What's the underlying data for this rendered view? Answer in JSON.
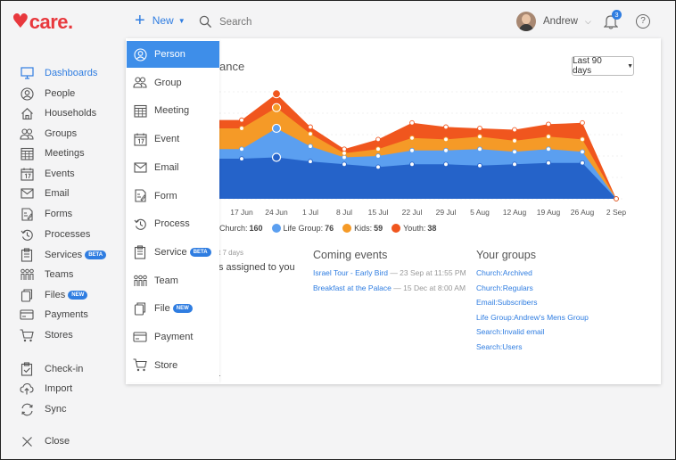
{
  "header": {
    "logo_text": "care.",
    "new_label": "New",
    "search_label": "Search",
    "user_name": "Andrew",
    "notification_count": "3",
    "help_label": "?"
  },
  "sidebar": {
    "items": [
      {
        "label": "Dashboards",
        "icon": "monitor-icon"
      },
      {
        "label": "People",
        "icon": "person-icon"
      },
      {
        "label": "Households",
        "icon": "house-icon"
      },
      {
        "label": "Groups",
        "icon": "group-icon"
      },
      {
        "label": "Meetings",
        "icon": "calendar-grid-icon"
      },
      {
        "label": "Events",
        "icon": "calendar-icon"
      },
      {
        "label": "Email",
        "icon": "envelope-icon"
      },
      {
        "label": "Forms",
        "icon": "form-icon"
      },
      {
        "label": "Processes",
        "icon": "process-icon"
      },
      {
        "label": "Services",
        "icon": "clipboard-icon",
        "badge": "BETA"
      },
      {
        "label": "Teams",
        "icon": "team-icon"
      },
      {
        "label": "Files",
        "icon": "file-icon",
        "badge": "NEW"
      },
      {
        "label": "Payments",
        "icon": "card-icon"
      },
      {
        "label": "Stores",
        "icon": "cart-icon"
      },
      {
        "label": "Check-in",
        "icon": "checkin-icon"
      },
      {
        "label": "Import",
        "icon": "upload-icon"
      },
      {
        "label": "Sync",
        "icon": "sync-icon"
      },
      {
        "label": "Close",
        "icon": "close-icon"
      }
    ]
  },
  "new_menu": {
    "items": [
      {
        "label": "Person",
        "icon": "person-icon"
      },
      {
        "label": "Group",
        "icon": "group-icon"
      },
      {
        "label": "Meeting",
        "icon": "calendar-grid-icon"
      },
      {
        "label": "Event",
        "icon": "calendar-icon"
      },
      {
        "label": "Email",
        "icon": "envelope-icon"
      },
      {
        "label": "Form",
        "icon": "form-icon"
      },
      {
        "label": "Process",
        "icon": "process-icon"
      },
      {
        "label": "Service",
        "icon": "clipboard-icon",
        "badge": "BETA"
      },
      {
        "label": "Team",
        "icon": "team-icon"
      },
      {
        "label": "File",
        "icon": "file-icon",
        "badge": "NEW"
      },
      {
        "label": "Payment",
        "icon": "card-icon"
      },
      {
        "label": "Store",
        "icon": "cart-icon"
      }
    ]
  },
  "dashboard": {
    "title_partial": "ance",
    "range_selected": "Last 90 days",
    "assigned_small": "t 7 days",
    "assigned_text": "s assigned to you",
    "coming_events_title": "Coming events",
    "events": [
      {
        "name": "Israel Tour - Early Bird",
        "when": "— 23 Sep at 11:55 PM"
      },
      {
        "name": "Breakfast at the Palace",
        "when": "— 15 Dec at 8:00 AM"
      }
    ],
    "your_groups_title": "Your groups",
    "groups": [
      "Church:Archived",
      "Church:Regulars",
      "Email:Subscribers",
      "Life Group:Andrew's Mens Group",
      "Search:Invalid email",
      "Search:Users"
    ],
    "footer_dot": "."
  },
  "chart_data": {
    "type": "area",
    "stacked": true,
    "x": [
      "",
      "17 Jun",
      "24 Jun",
      "1 Jul",
      "8 Jul",
      "15 Jul",
      "22 Jul",
      "29 Jul",
      "5 Aug",
      "12 Aug",
      "19 Aug",
      "26 Aug",
      "2 Sep"
    ],
    "series": [
      {
        "name": "Church",
        "legend_label": "Church:",
        "total": "160",
        "color": "#2563c9",
        "values": [
          29,
          29,
          30,
          27,
          25,
          23,
          25,
          25,
          24,
          25,
          26,
          26,
          0
        ]
      },
      {
        "name": "Life Group",
        "legend_label": "Life Group:",
        "total": "76",
        "color": "#5b9ff0",
        "values": [
          7,
          7,
          21,
          11,
          5,
          8,
          10,
          10,
          12,
          9,
          10,
          8,
          0
        ]
      },
      {
        "name": "Kids",
        "legend_label": "Kids:",
        "total": "59",
        "color": "#f59a27",
        "values": [
          15,
          15,
          15,
          9,
          3,
          5,
          9,
          8,
          9,
          8,
          9,
          9,
          0
        ]
      },
      {
        "name": "Youth",
        "legend_label": "Youth:",
        "total": "38",
        "color": "#f0561e",
        "values": [
          6,
          6,
          10,
          5,
          3,
          7,
          11,
          9,
          6,
          8,
          9,
          12,
          0
        ]
      }
    ],
    "legend_position": "bottom-left"
  }
}
